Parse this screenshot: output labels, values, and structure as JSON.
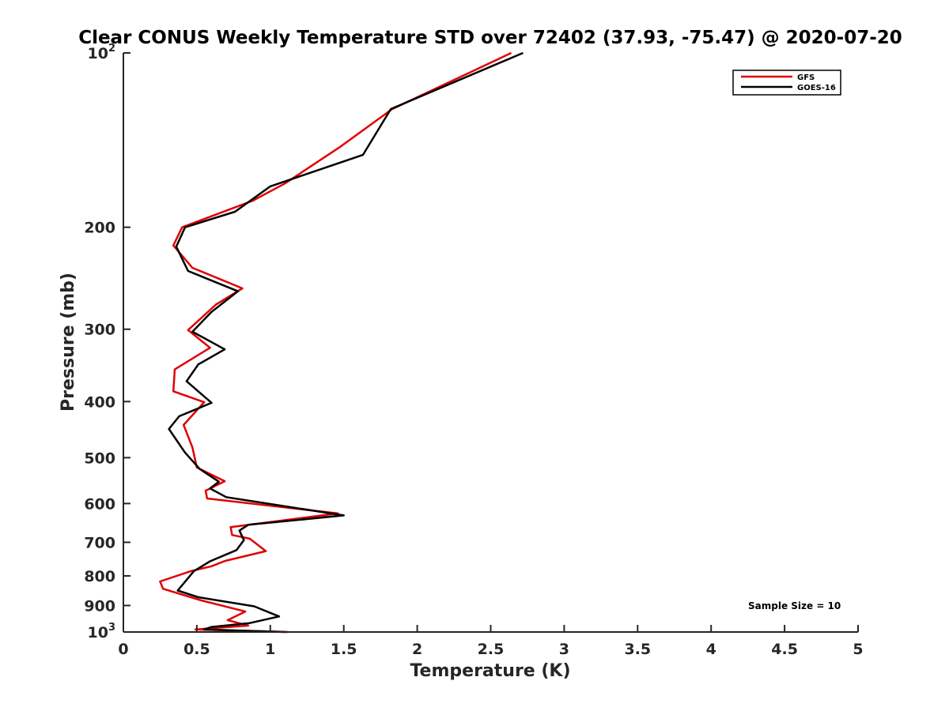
{
  "chart_data": {
    "type": "line",
    "title": "Clear CONUS Weekly Temperature STD over 72402 (37.93, -75.47) @ 2020-07-20",
    "xlabel": "Temperature (K)",
    "ylabel": "Pressure (mb)",
    "xlim": [
      0,
      5
    ],
    "ylim": [
      1000,
      100
    ],
    "y_scale": "log",
    "x_ticks": [
      "0",
      "0.5",
      "1",
      "1.5",
      "2",
      "2.5",
      "3",
      "3.5",
      "4",
      "4.5",
      "5"
    ],
    "y_ticks": [
      {
        "value": 100,
        "base": "10",
        "exp": "2"
      },
      {
        "value": 200,
        "label": "200"
      },
      {
        "value": 300,
        "label": "300"
      },
      {
        "value": 400,
        "label": "400"
      },
      {
        "value": 500,
        "label": "500"
      },
      {
        "value": 600,
        "label": "600"
      },
      {
        "value": 700,
        "label": "700"
      },
      {
        "value": 800,
        "label": "800"
      },
      {
        "value": 900,
        "label": "900"
      },
      {
        "value": 1000,
        "base": "10",
        "exp": "3"
      }
    ],
    "legend_position": "top-right",
    "annotation": "Sample Size = 10",
    "series": [
      {
        "name": "GFS",
        "color": "#e00000",
        "points": [
          [
            2.64,
            100
          ],
          [
            1.83,
            125
          ],
          [
            1.48,
            145
          ],
          [
            1.1,
            168
          ],
          [
            0.88,
            180
          ],
          [
            0.4,
            200
          ],
          [
            0.34,
            215
          ],
          [
            0.47,
            235
          ],
          [
            0.81,
            255
          ],
          [
            0.63,
            272
          ],
          [
            0.44,
            301
          ],
          [
            0.59,
            323
          ],
          [
            0.35,
            352
          ],
          [
            0.34,
            384
          ],
          [
            0.55,
            401
          ],
          [
            0.41,
            439
          ],
          [
            0.47,
            480
          ],
          [
            0.5,
            520
          ],
          [
            0.69,
            549
          ],
          [
            0.56,
            570
          ],
          [
            0.57,
            588
          ],
          [
            1.46,
            624
          ],
          [
            0.73,
            659
          ],
          [
            0.74,
            680
          ],
          [
            0.86,
            690
          ],
          [
            0.97,
            725
          ],
          [
            0.69,
            754
          ],
          [
            0.6,
            770
          ],
          [
            0.46,
            785
          ],
          [
            0.25,
            818
          ],
          [
            0.27,
            842
          ],
          [
            0.53,
            882
          ],
          [
            0.83,
            922
          ],
          [
            0.71,
            954
          ],
          [
            0.85,
            975
          ],
          [
            0.49,
            990
          ],
          [
            1.12,
            1000
          ]
        ]
      },
      {
        "name": "GOES-16",
        "color": "#000000",
        "points": [
          [
            2.72,
            100
          ],
          [
            1.82,
            125
          ],
          [
            1.63,
            150
          ],
          [
            1.0,
            170
          ],
          [
            0.76,
            188
          ],
          [
            0.42,
            200
          ],
          [
            0.36,
            216
          ],
          [
            0.44,
            238
          ],
          [
            0.78,
            258
          ],
          [
            0.6,
            280
          ],
          [
            0.47,
            303
          ],
          [
            0.69,
            325
          ],
          [
            0.51,
            345
          ],
          [
            0.43,
            369
          ],
          [
            0.6,
            402
          ],
          [
            0.38,
            424
          ],
          [
            0.31,
            446
          ],
          [
            0.42,
            490
          ],
          [
            0.52,
            523
          ],
          [
            0.65,
            550
          ],
          [
            0.59,
            565
          ],
          [
            0.7,
            585
          ],
          [
            1.5,
            629
          ],
          [
            0.85,
            653
          ],
          [
            0.79,
            668
          ],
          [
            0.82,
            694
          ],
          [
            0.77,
            722
          ],
          [
            0.59,
            755
          ],
          [
            0.48,
            785
          ],
          [
            0.37,
            848
          ],
          [
            0.51,
            871
          ],
          [
            0.89,
            903
          ],
          [
            1.06,
            940
          ],
          [
            0.86,
            965
          ],
          [
            0.6,
            980
          ],
          [
            0.55,
            990
          ],
          [
            1.1,
            1000
          ]
        ]
      }
    ]
  }
}
